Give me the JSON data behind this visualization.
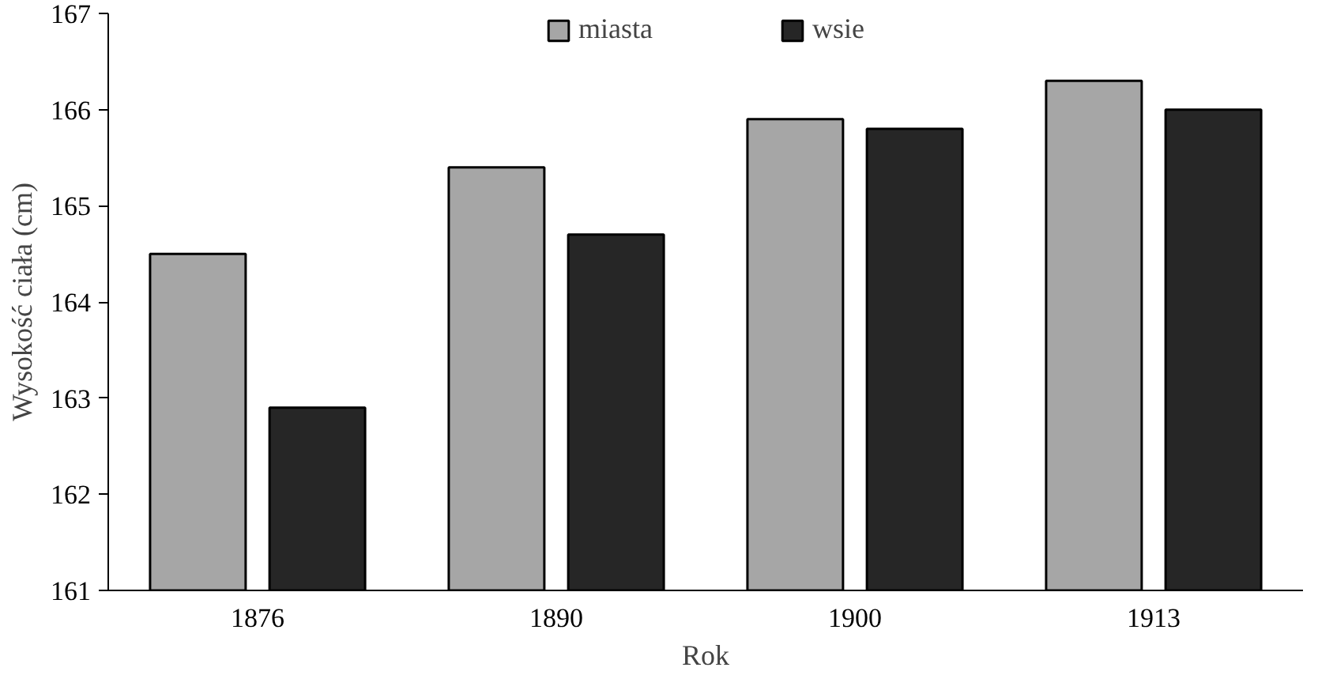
{
  "chart_data": {
    "type": "bar",
    "xlabel": "Rok",
    "ylabel": "Wysokość ciała (cm)",
    "categories": [
      "1876",
      "1890",
      "1900",
      "1913"
    ],
    "series": [
      {
        "name": "miasta",
        "color": "#a6a6a6",
        "values": [
          164.5,
          165.4,
          165.9,
          166.3
        ]
      },
      {
        "name": "wsie",
        "color": "#262626",
        "values": [
          162.9,
          164.7,
          165.8,
          166.0
        ]
      }
    ],
    "ylim": [
      161,
      167
    ],
    "yticks": [
      161,
      162,
      163,
      164,
      165,
      166,
      167
    ],
    "grid": false,
    "legend": "top"
  }
}
